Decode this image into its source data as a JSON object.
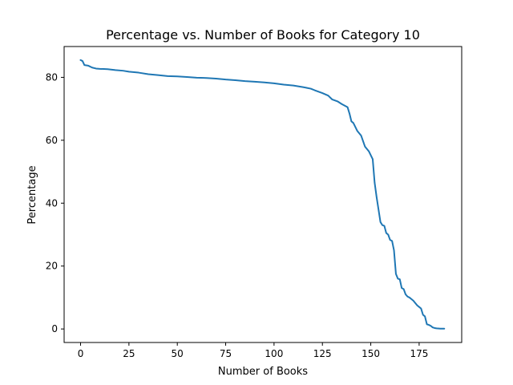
{
  "chart_data": {
    "type": "line",
    "title": "Percentage vs. Number of Books for Category 10",
    "xlabel": "Number of Books",
    "ylabel": "Percentage",
    "xlim": [
      -8.5,
      197
    ],
    "ylim": [
      -4.3,
      89.8
    ],
    "xticks": [
      0,
      25,
      50,
      75,
      100,
      125,
      150,
      175
    ],
    "yticks": [
      0,
      20,
      40,
      60,
      80
    ],
    "grid": false,
    "legend": "none",
    "series": [
      {
        "color": "#1f77b4",
        "x": [
          0,
          1,
          2,
          4,
          6,
          8,
          10,
          14,
          18,
          22,
          25,
          30,
          35,
          40,
          45,
          50,
          55,
          60,
          65,
          70,
          75,
          80,
          85,
          90,
          95,
          100,
          105,
          110,
          115,
          119,
          121,
          125,
          128,
          130,
          133,
          135,
          138,
          139,
          140,
          141,
          143,
          145,
          147,
          149,
          151,
          152,
          153,
          154,
          155,
          156,
          157,
          158,
          159,
          160,
          161,
          162,
          163,
          164,
          165,
          166,
          167,
          168,
          169,
          170,
          171,
          172,
          174,
          175,
          176,
          177,
          178,
          179,
          180,
          181,
          182,
          183,
          184,
          186,
          187,
          188
        ],
        "y": [
          85.5,
          85.2,
          83.9,
          83.7,
          83.1,
          82.8,
          82.7,
          82.6,
          82.3,
          82.1,
          81.8,
          81.5,
          81.0,
          80.7,
          80.4,
          80.3,
          80.1,
          79.9,
          79.8,
          79.6,
          79.3,
          79.1,
          78.8,
          78.6,
          78.4,
          78.1,
          77.7,
          77.4,
          76.9,
          76.4,
          75.9,
          75.0,
          74.2,
          73.0,
          72.3,
          71.5,
          70.5,
          68.5,
          66.0,
          65.5,
          63.0,
          61.5,
          58.0,
          56.5,
          54.0,
          46.5,
          42.0,
          38.0,
          34.0,
          33.0,
          32.8,
          30.5,
          30.0,
          28.3,
          28.0,
          25.0,
          17.5,
          16.0,
          15.8,
          13.0,
          12.7,
          11.0,
          10.3,
          10.0,
          9.5,
          9.0,
          7.5,
          7.0,
          6.5,
          4.5,
          4.0,
          1.5,
          1.3,
          1.0,
          0.5,
          0.3,
          0.2,
          0.1,
          0.1,
          0.1
        ]
      }
    ]
  }
}
